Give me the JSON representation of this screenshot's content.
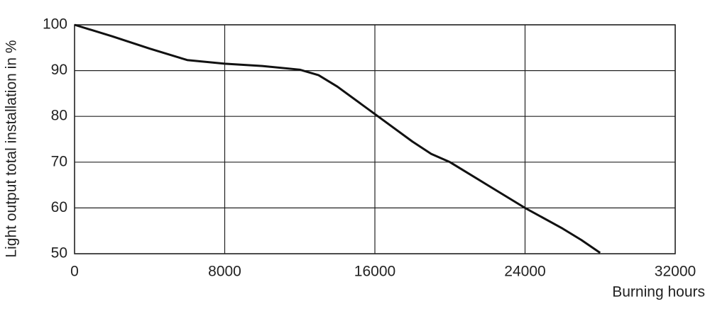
{
  "chart_data": {
    "type": "line",
    "x_label": "Burning hours",
    "y_label": "Light output total installation in %",
    "x": [
      0,
      2000,
      4000,
      6000,
      8000,
      10000,
      12000,
      13000,
      14000,
      16000,
      18000,
      19000,
      20000,
      22000,
      24000,
      26000,
      27000,
      28000
    ],
    "series": [
      {
        "color": "#111111",
        "values": [
          100,
          97.5,
          94.8,
          92.3,
          91.5,
          91.0,
          90.2,
          89,
          86.5,
          80.5,
          74.5,
          71.8,
          70,
          65,
          60,
          55.5,
          53,
          50.2
        ]
      }
    ],
    "xlim": [
      0,
      32000
    ],
    "xticks": [
      0,
      8000,
      16000,
      24000,
      32000
    ],
    "ylim": [
      50,
      100
    ],
    "yticks": [
      50,
      60,
      70,
      80,
      90,
      100
    ],
    "grid": true
  }
}
